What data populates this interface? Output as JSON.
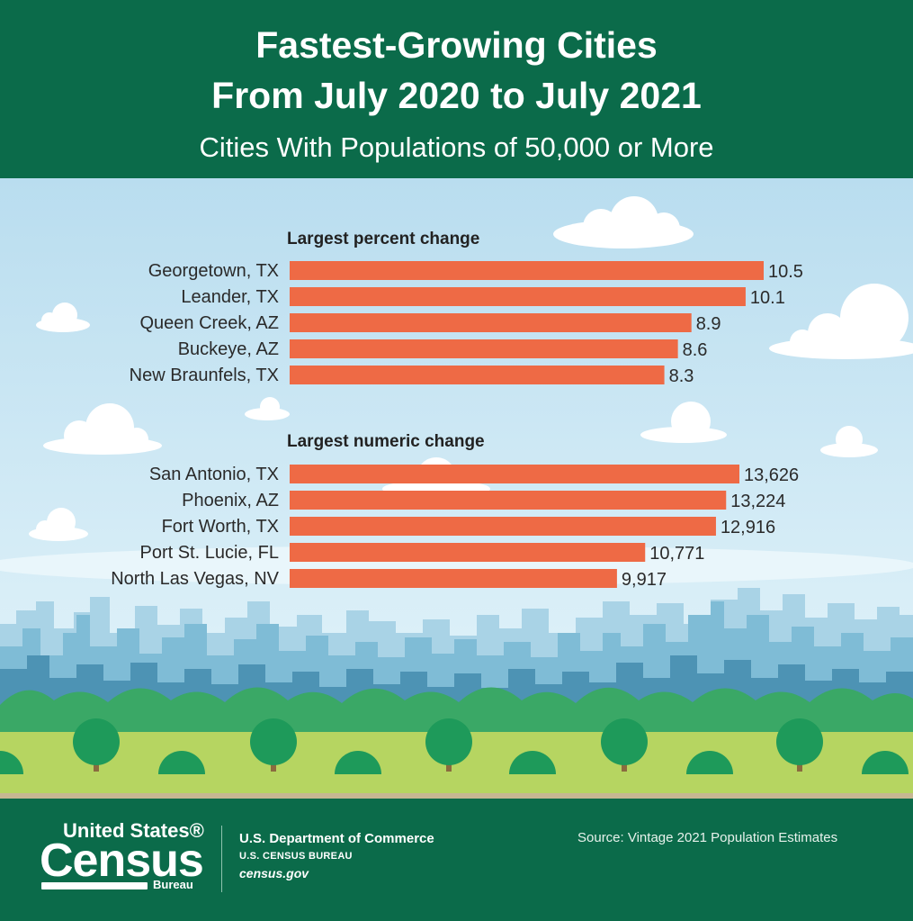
{
  "header": {
    "title_line1": "Fastest-Growing Cities",
    "title_line2": "From July 2020 to July 2021",
    "subtitle": "Cities With Populations of 50,000 or More"
  },
  "chart_data": [
    {
      "type": "bar",
      "orientation": "horizontal",
      "title": "Largest percent change",
      "categories": [
        "Georgetown, TX",
        "Leander, TX",
        "Queen Creek, AZ",
        "Buckeye, AZ",
        "New Braunfels, TX"
      ],
      "values": [
        10.5,
        10.1,
        8.9,
        8.6,
        8.3
      ],
      "value_labels": [
        "10.5",
        "10.1",
        "8.9",
        "8.6",
        "8.3"
      ],
      "color": "#ee6a45"
    },
    {
      "type": "bar",
      "orientation": "horizontal",
      "title": "Largest numeric change",
      "categories": [
        "San Antonio, TX",
        "Phoenix, AZ",
        "Fort Worth, TX",
        "Port St. Lucie, FL",
        "North Las Vegas, NV"
      ],
      "values": [
        13626,
        13224,
        12916,
        10771,
        9917
      ],
      "value_labels": [
        "13,626",
        "13,224",
        "12,916",
        "10,771",
        "9,917"
      ],
      "color": "#ee6a45"
    }
  ],
  "colors": {
    "brand_green": "#0b6b4a",
    "sky": "#cde7f2",
    "bar": "#ee6a45",
    "grass": "#b6d561",
    "tree": "#1e9a5a"
  },
  "footer": {
    "logo_top": "United States®",
    "logo_main": "Census",
    "logo_bottom": "Bureau",
    "department": "U.S. Department of Commerce",
    "bureau": "U.S. CENSUS BUREAU",
    "website": "census.gov",
    "source": "Source: Vintage 2021 Population Estimates"
  }
}
